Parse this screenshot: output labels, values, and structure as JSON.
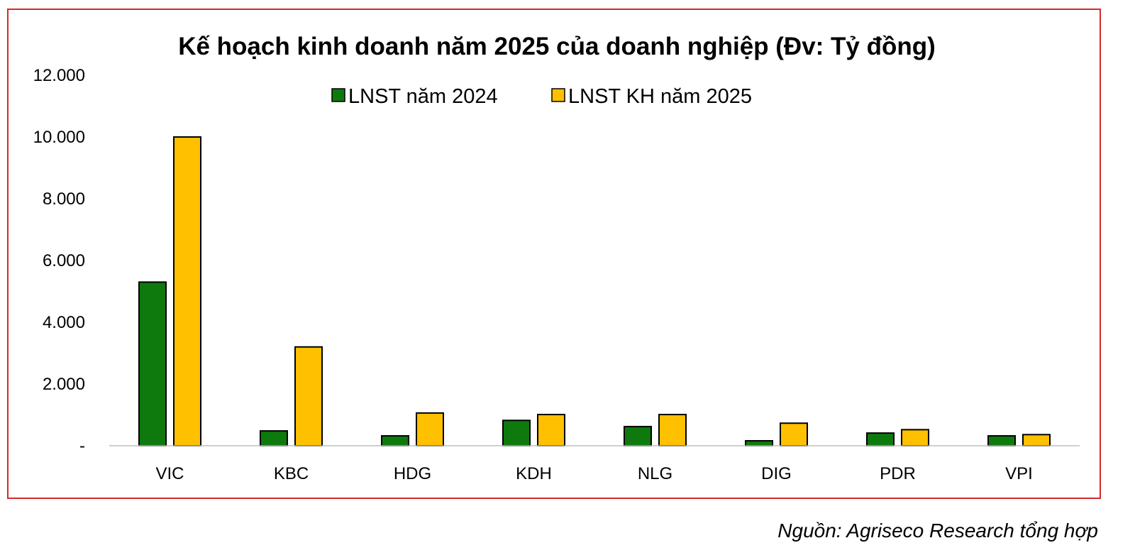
{
  "chart_data": {
    "type": "bar",
    "title": "Kế hoạch kinh doanh năm 2025 của doanh nghiệp (Đv: Tỷ đồng)",
    "xlabel": "",
    "ylabel": "",
    "categories": [
      "VIC",
      "KBC",
      "HDG",
      "KDH",
      "NLG",
      "DIG",
      "PDR",
      "VPI"
    ],
    "series": [
      {
        "name": "LNST năm 2024",
        "color": "#0e7a0d",
        "values": [
          5300,
          480,
          320,
          820,
          620,
          160,
          410,
          320
        ]
      },
      {
        "name": "LNST KH năm 2025",
        "color": "#ffc000",
        "values": [
          10000,
          3200,
          1060,
          1010,
          1010,
          730,
          520,
          360
        ]
      }
    ],
    "ylim": [
      0,
      12000
    ],
    "yticks": [
      {
        "value": 0,
        "label": "-"
      },
      {
        "value": 2000,
        "label": "2.000"
      },
      {
        "value": 4000,
        "label": "4.000"
      },
      {
        "value": 6000,
        "label": "6.000"
      },
      {
        "value": 8000,
        "label": "8.000"
      },
      {
        "value": 10000,
        "label": "10.000"
      },
      {
        "value": 12000,
        "label": "12.000"
      }
    ],
    "grid": false,
    "legend_position": "top-center"
  },
  "source": "Nguồn: Agriseco Research tổng hợp"
}
